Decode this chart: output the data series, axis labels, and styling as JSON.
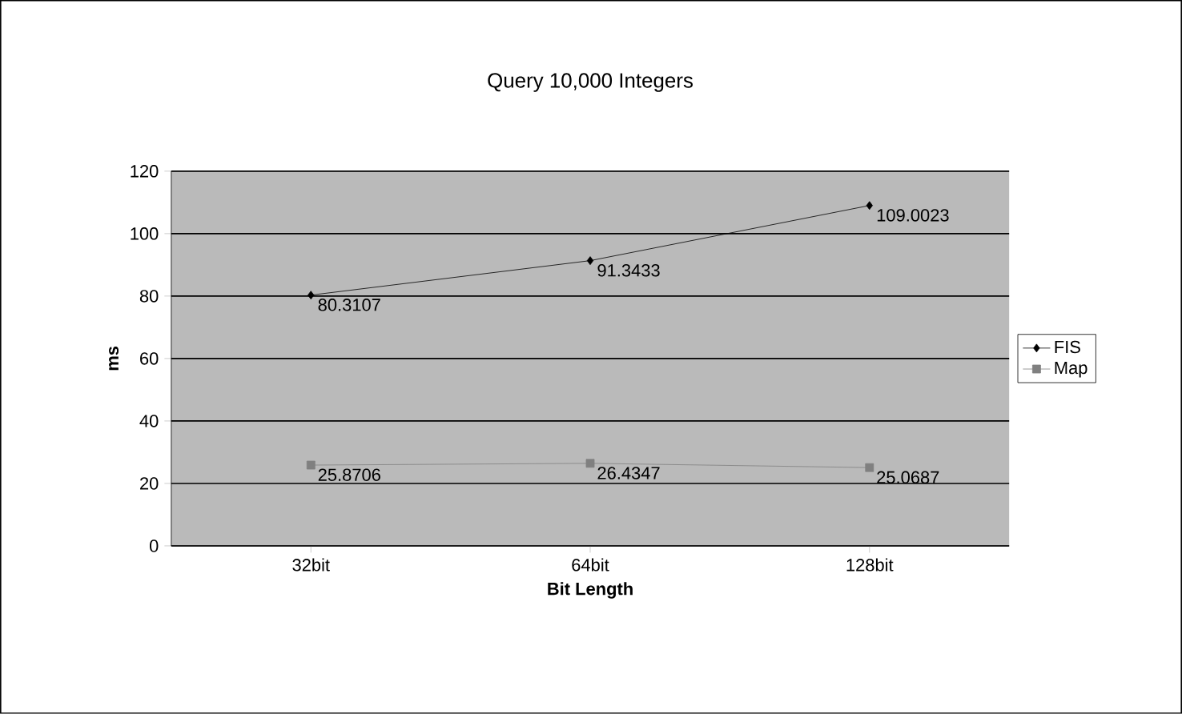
{
  "chart_data": {
    "type": "line",
    "title": "Query 10,000 Integers",
    "xlabel": "Bit Length",
    "ylabel": "ms",
    "categories": [
      "32bit",
      "64bit",
      "128bit"
    ],
    "series": [
      {
        "name": "FIS",
        "color": "#000000",
        "marker": "diamond",
        "values": [
          80.3107,
          91.3433,
          109.0023
        ]
      },
      {
        "name": "Map",
        "color": "#808080",
        "marker": "square",
        "values": [
          25.8706,
          26.4347,
          25.0687
        ]
      }
    ],
    "ylim": [
      0,
      120
    ],
    "yticks": [
      0,
      20,
      40,
      60,
      80,
      100,
      120
    ],
    "grid": "y",
    "legend": "right",
    "data_labels": true,
    "line_style": "solid"
  }
}
